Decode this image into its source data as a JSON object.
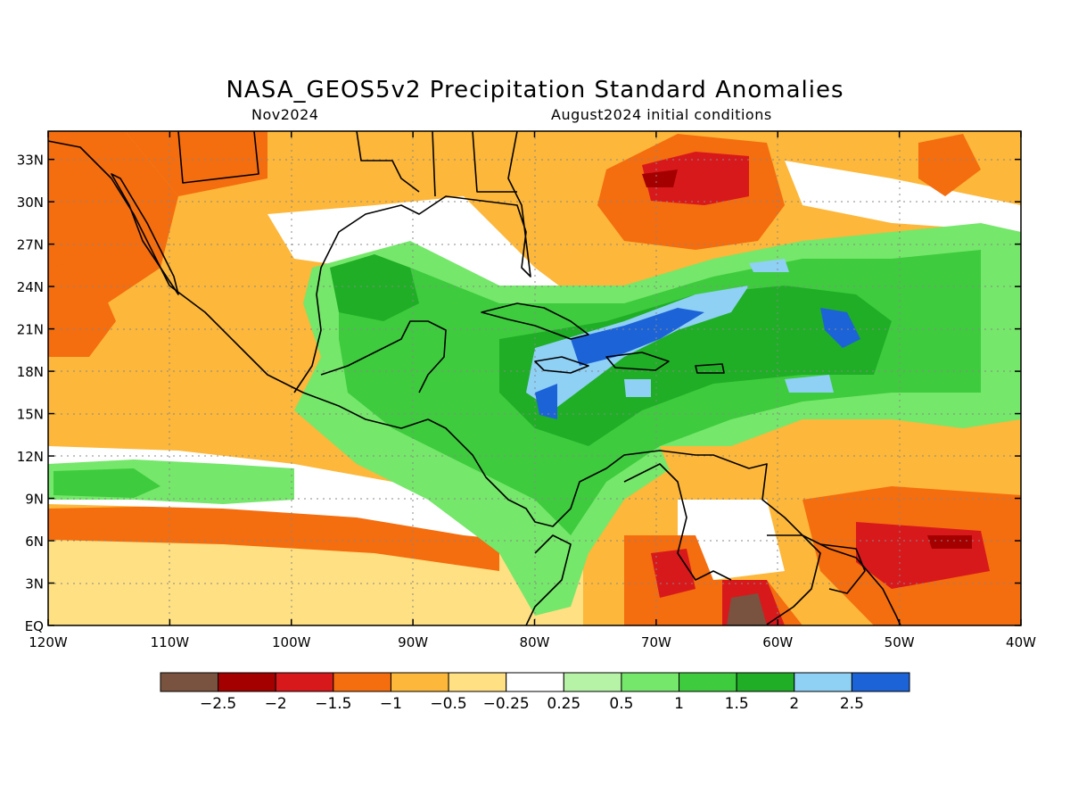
{
  "title": "NASA_GEOS5v2 Precipitation Standard Anomalies",
  "subtitle_left": "Nov2024",
  "subtitle_right": "August2024 initial conditions",
  "map": {
    "lon_range": [
      -120,
      -40
    ],
    "lat_range": [
      0,
      35
    ],
    "lon_ticks": [
      "120W",
      "110W",
      "100W",
      "90W",
      "80W",
      "70W",
      "60W",
      "50W",
      "40W"
    ],
    "lat_ticks": [
      "EQ",
      "3N",
      "6N",
      "9N",
      "12N",
      "15N",
      "18N",
      "21N",
      "24N",
      "27N",
      "30N",
      "33N"
    ],
    "grid": "dotted"
  },
  "colorbar": {
    "colors": [
      "#7a5240",
      "#a50000",
      "#d7191c",
      "#f46d0f",
      "#fdb73a",
      "#ffe082",
      "#ffffff",
      "#b6f3a6",
      "#75e76a",
      "#3ecb3e",
      "#1fae26",
      "#8fd0f5",
      "#1c63d8"
    ],
    "labels": [
      "−2.5",
      "−2",
      "−1.5",
      "−1",
      "−0.5",
      "−0.25",
      "0.25",
      "0.5",
      "1",
      "1.5",
      "2",
      "2.5"
    ]
  }
}
